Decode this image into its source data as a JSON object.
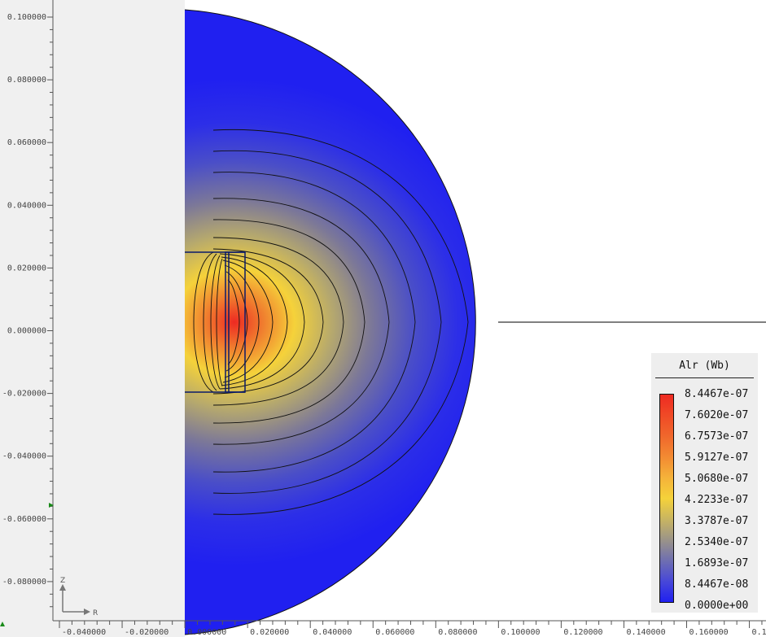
{
  "view": {
    "x_axis_label": "R",
    "y_axis_label": "Z",
    "x_ticks": [
      "-0.040000",
      "-0.020000",
      "0.000000",
      "0.020000",
      "0.040000",
      "0.060000",
      "0.080000",
      "0.100000",
      "0.120000",
      "0.140000",
      "0.160000",
      "0.1"
    ],
    "y_ticks": [
      "0.100000",
      "0.080000",
      "0.060000",
      "0.040000",
      "0.020000",
      "0.000000",
      "-0.020000",
      "-0.040000",
      "-0.060000",
      "-0.080000"
    ]
  },
  "legend": {
    "title": "Alr (Wb)",
    "labels": [
      "8.4467e-07",
      "7.6020e-07",
      "6.7573e-07",
      "5.9127e-07",
      "5.0680e-07",
      "4.2233e-07",
      "3.3787e-07",
      "2.5340e-07",
      "1.6893e-07",
      "8.4467e-08",
      "0.0000e+00"
    ]
  },
  "colors": {
    "background_region": "#f0f0f0",
    "domain_low": "#2020f0",
    "field_high": "#ee3322",
    "field_mid": "#f5d23a",
    "field_mid_low": "#9b9488"
  }
}
